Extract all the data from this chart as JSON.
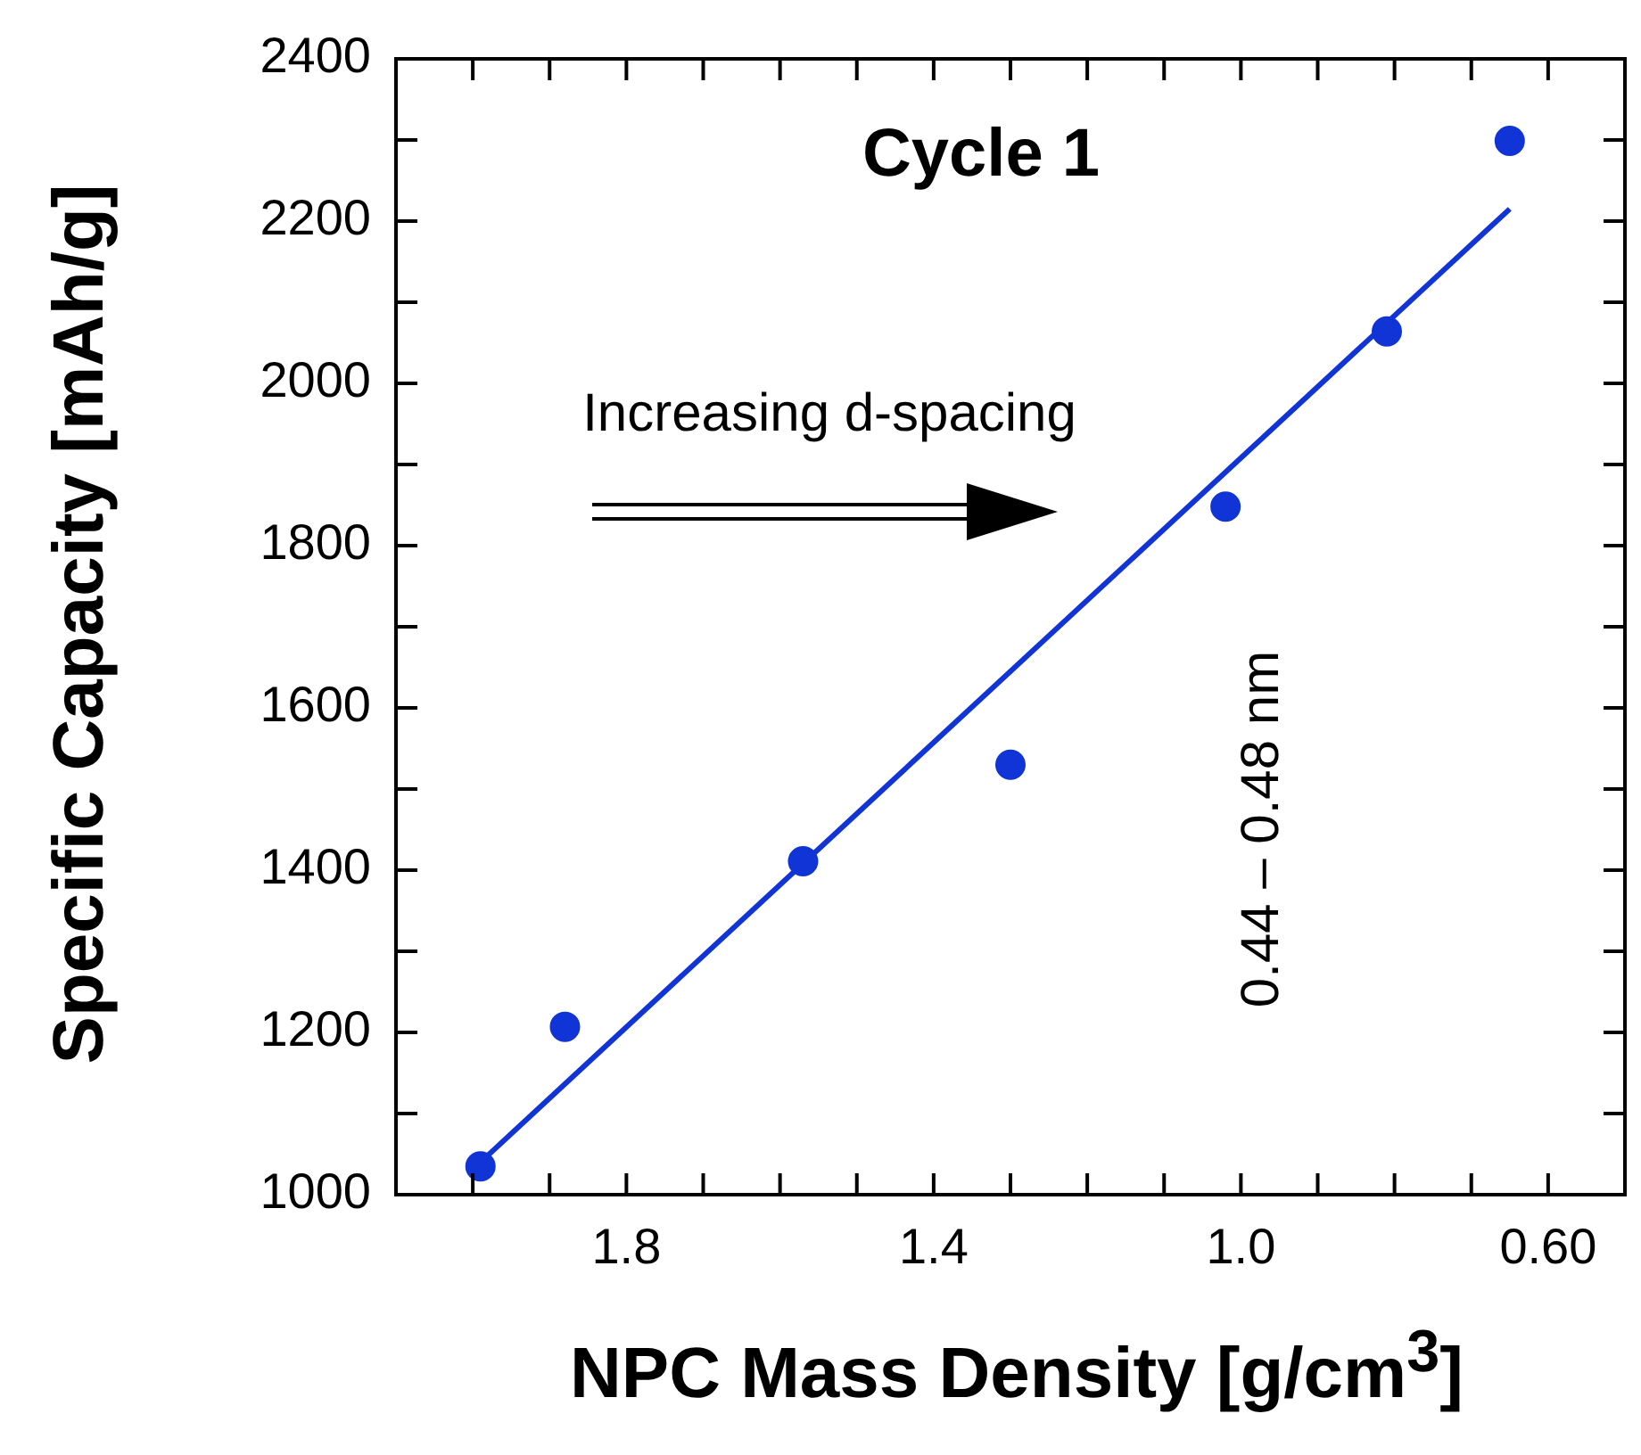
{
  "chart_data": {
    "type": "scatter",
    "xlabel": "NPC Mass Density [g/cm$^{3}$]",
    "ylabel": "Specific Capacity [mAh/g]",
    "annotations": [
      "Cycle 1",
      "Increasing d-spacing",
      "0.44 – 0.48 nm"
    ],
    "series": [
      {
        "type": "scatter",
        "marker": "circle",
        "color": "#1034d6",
        "x": [
          1.99,
          1.88,
          1.57,
          1.3,
          1.02,
          0.81,
          0.65
        ],
        "values": [
          1035,
          1207,
          1411,
          1530,
          1848,
          2064,
          2299
        ]
      },
      {
        "type": "line",
        "color": "#1034d6",
        "x": [
          1.99,
          0.65
        ],
        "values": [
          1040,
          2215
        ]
      }
    ],
    "xlim": [
      2.1,
      0.5
    ],
    "xticks": [
      {
        "value": 2.0,
        "label": null
      },
      {
        "value": 1.9,
        "label": null
      },
      {
        "value": 1.8,
        "label": "1.8"
      },
      {
        "value": 1.7,
        "label": null
      },
      {
        "value": 1.6,
        "label": null
      },
      {
        "value": 1.5,
        "label": null
      },
      {
        "value": 1.4,
        "label": "1.4"
      },
      {
        "value": 1.3,
        "label": null
      },
      {
        "value": 1.2,
        "label": null
      },
      {
        "value": 1.1,
        "label": null
      },
      {
        "value": 1.0,
        "label": "1.0"
      },
      {
        "value": 0.9,
        "label": null
      },
      {
        "value": 0.8,
        "label": null
      },
      {
        "value": 0.7,
        "label": null
      },
      {
        "value": 0.6,
        "label": "0.60"
      }
    ],
    "ylim": [
      1000,
      2400
    ],
    "yticks": [
      1000,
      {
        "value": 1100,
        "label": null
      },
      1200,
      {
        "value": 1300,
        "label": null
      },
      1400,
      {
        "value": 1500,
        "label": null
      },
      1600,
      {
        "value": 1700,
        "label": null
      },
      1800,
      {
        "value": 1900,
        "label": null
      },
      2000,
      {
        "value": 2100,
        "label": null
      },
      2200,
      {
        "value": 2300,
        "label": null
      },
      2400
    ],
    "grid": false,
    "legend": false,
    "line_style": "solid"
  }
}
